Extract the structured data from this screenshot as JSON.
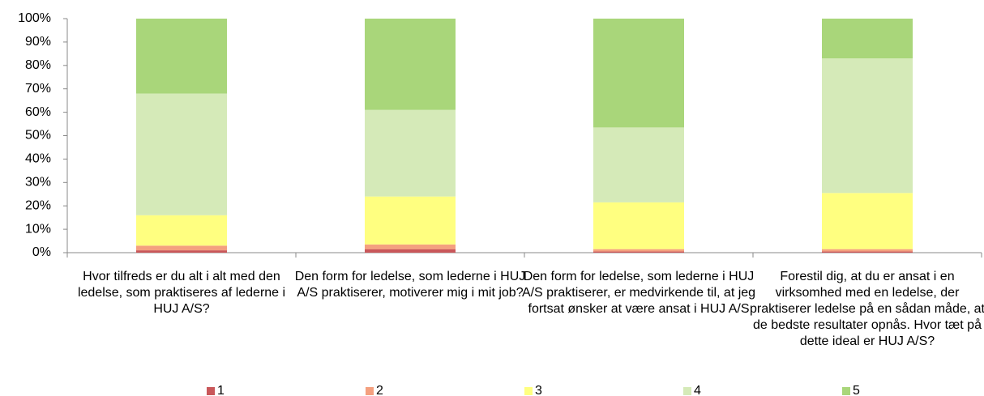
{
  "chart_data": {
    "type": "bar",
    "stacked": true,
    "categories": [
      "Hvor tilfreds er du alt i alt med den ledelse, som praktiseres af lederne i HUJ A/S?",
      "Den form for ledelse, som lederne i HUJ A/S praktiserer, motiverer mig i mit job?",
      "Den form for ledelse, som lederne i HUJ A/S praktiserer, er medvirkende til, at jeg fortsat ønsker at være ansat i HUJ A/S",
      "Forestil dig, at du er ansat i en virksomhed med en ledelse, der praktiserer ledelse på en sådan måde, at de bedste resultater opnås. Hvor tæt på dette ideal er HUJ A/S?"
    ],
    "series": [
      {
        "name": "1",
        "color": "#c9575a",
        "values": [
          1,
          1.5,
          0.5,
          0.5
        ]
      },
      {
        "name": "2",
        "color": "#f4a07f",
        "values": [
          2,
          2,
          1,
          1
        ]
      },
      {
        "name": "3",
        "color": "#ffff80",
        "values": [
          13,
          20.5,
          20,
          24
        ]
      },
      {
        "name": "4",
        "color": "#d5eab8",
        "values": [
          52,
          37,
          32,
          57.5
        ]
      },
      {
        "name": "5",
        "color": "#a9d67a",
        "values": [
          32,
          39,
          46.5,
          17
        ]
      }
    ],
    "ylim": [
      0,
      100
    ],
    "yticks": [
      {
        "value": 0,
        "label": "0%"
      },
      {
        "value": 10,
        "label": "10%"
      },
      {
        "value": 20,
        "label": "20%"
      },
      {
        "value": 30,
        "label": "30%"
      },
      {
        "value": 40,
        "label": "40%"
      },
      {
        "value": 50,
        "label": "50%"
      },
      {
        "value": 60,
        "label": "60%"
      },
      {
        "value": 70,
        "label": "70%"
      },
      {
        "value": 80,
        "label": "80%"
      },
      {
        "value": 90,
        "label": "90%"
      },
      {
        "value": 100,
        "label": "100%"
      }
    ],
    "legend": "bottom"
  }
}
